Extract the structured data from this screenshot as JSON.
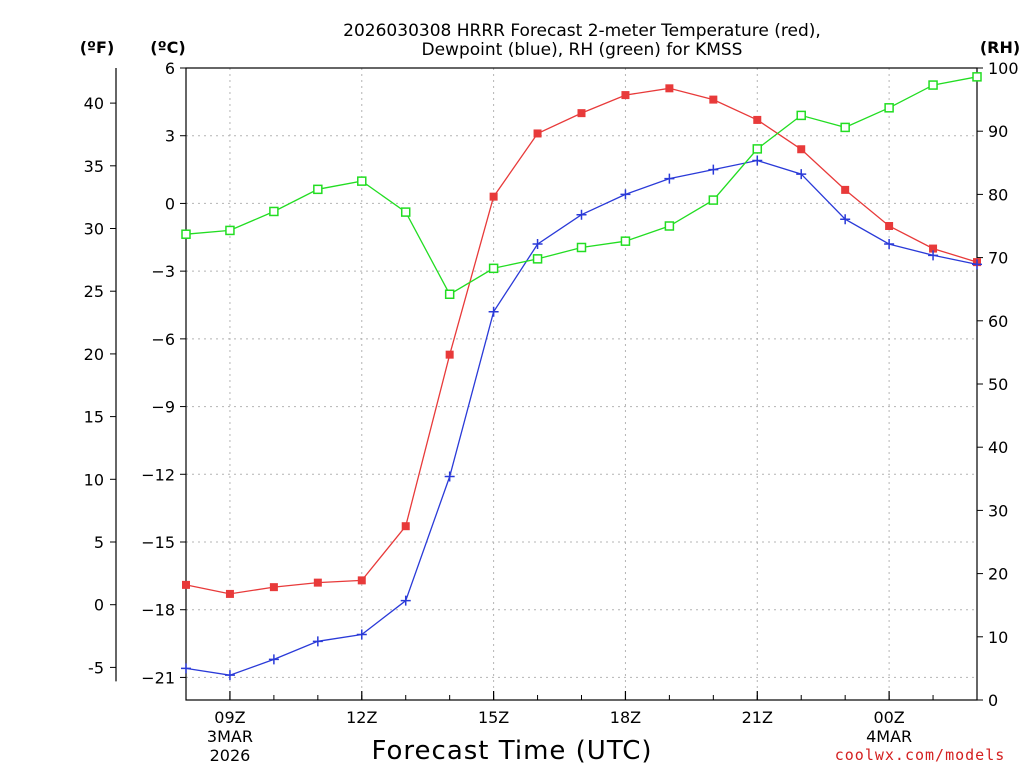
{
  "chart_data": {
    "type": "line",
    "title_line1": "2026030308 HRRR Forecast 2-meter Temperature (red),",
    "title_line2": "Dewpoint (blue), RH (green) for KMSS",
    "xlabel": "Forecast Time (UTC)",
    "credit": "coolwx.com/models",
    "units": {
      "fahrenheit": "(ºF)",
      "celsius": "(ºC)",
      "rh": "(RH)"
    },
    "axes": {
      "celsius": {
        "min": -22,
        "max": 6,
        "ticks": [
          6,
          3,
          0,
          -3,
          -6,
          -9,
          -12,
          -15,
          -18,
          -21
        ]
      },
      "fahrenheit": {
        "ticks": [
          40,
          35,
          30,
          25,
          20,
          15,
          10,
          5,
          0,
          -5
        ]
      },
      "rh": {
        "min": 0,
        "max": 100,
        "ticks": [
          100,
          90,
          80,
          70,
          60,
          50,
          40,
          30,
          20,
          10,
          0
        ]
      },
      "x": {
        "min": 8,
        "max": 26
      }
    },
    "x_ticks": [
      {
        "hour": 9,
        "line1": "09Z",
        "line2": "3MAR",
        "line3": "2026"
      },
      {
        "hour": 12,
        "line1": "12Z"
      },
      {
        "hour": 15,
        "line1": "15Z"
      },
      {
        "hour": 18,
        "line1": "18Z"
      },
      {
        "hour": 21,
        "line1": "21Z"
      },
      {
        "hour": 24,
        "line1": "00Z",
        "line2": "4MAR"
      }
    ],
    "x_hours": [
      8,
      9,
      10,
      11,
      12,
      13,
      14,
      15,
      16,
      17,
      18,
      19,
      20,
      21,
      22,
      23,
      24,
      25,
      26
    ],
    "series": [
      {
        "name": "Temperature (°C)",
        "color": "#e83a3a",
        "marker": "filled-square",
        "axis": "celsius",
        "values": [
          -16.9,
          -17.3,
          -17.0,
          -16.8,
          -16.7,
          -14.3,
          -6.7,
          0.3,
          3.1,
          4.0,
          4.8,
          5.1,
          4.6,
          3.7,
          2.4,
          0.6,
          -1.0,
          -2.0,
          -2.6
        ]
      },
      {
        "name": "Dewpoint (°C)",
        "color": "#2a3ad8",
        "marker": "plus",
        "axis": "celsius",
        "values": [
          -20.6,
          -20.9,
          -20.2,
          -19.4,
          -19.1,
          -17.6,
          -12.1,
          -4.8,
          -1.8,
          -0.5,
          0.4,
          1.1,
          1.5,
          1.9,
          1.3,
          -0.7,
          -1.8,
          -2.3,
          -2.7
        ]
      },
      {
        "name": "RH (%)",
        "color": "#22dd22",
        "marker": "open-square",
        "axis": "rh",
        "values": [
          73.7,
          74.3,
          77.3,
          80.8,
          82.1,
          77.2,
          64.2,
          68.3,
          69.8,
          71.6,
          72.6,
          75.0,
          79.1,
          87.2,
          92.5,
          90.6,
          93.7,
          97.3,
          98.6
        ]
      }
    ]
  }
}
